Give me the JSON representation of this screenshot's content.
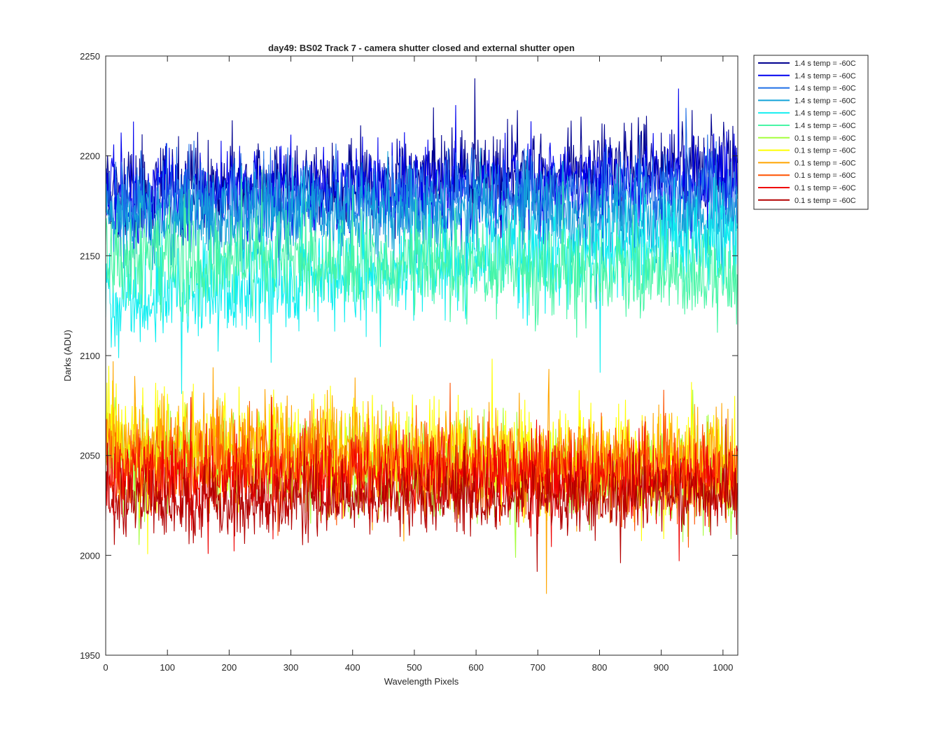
{
  "chart_data": {
    "type": "line",
    "title": "day49: BS02  Track 7 - camera shutter closed and external shutter open",
    "xlabel": "Wavelength Pixels",
    "ylabel": "Darks (ADU)",
    "xlim": [
      0,
      1024
    ],
    "ylim": [
      1950,
      2250
    ],
    "xticks": [
      0,
      100,
      200,
      300,
      400,
      500,
      600,
      700,
      800,
      900,
      1000
    ],
    "yticks": [
      1950,
      2000,
      2050,
      2100,
      2150,
      2200,
      2250
    ],
    "xtick_labels": [
      "0",
      "100",
      "200",
      "300",
      "400",
      "500",
      "600",
      "700",
      "800",
      "900",
      "1000"
    ],
    "ytick_labels": [
      "1950",
      "2000",
      "2050",
      "2100",
      "2150",
      "2200",
      "2250"
    ],
    "grid": false,
    "legend_position": "outside-top-right",
    "x_points": 1024,
    "series": [
      {
        "name": "1.4 s temp = -60C",
        "color": "#00008f",
        "base_start": 2182,
        "base_end": 2196,
        "noise": 24
      },
      {
        "name": "1.4 s temp = -60C",
        "color": "#0000ef",
        "base_start": 2179,
        "base_end": 2190,
        "noise": 24
      },
      {
        "name": "1.4 s temp = -60C",
        "color": "#1f6fe6",
        "base_start": 2176,
        "base_end": 2182,
        "noise": 24
      },
      {
        "name": "1.4 s temp = -60C",
        "color": "#13a3d9",
        "base_start": 2170,
        "base_end": 2168,
        "noise": 24
      },
      {
        "name": "1.4 s temp = -60C",
        "color": "#10eef0",
        "base_start": 2128,
        "base_end": 2160,
        "noise": 26
      },
      {
        "name": "1.4 s temp = -60C",
        "color": "#49f5a6",
        "base_start": 2150,
        "base_end": 2140,
        "noise": 26
      },
      {
        "name": "0.1 s temp = -60C",
        "color": "#a5ff3d",
        "base_start": 2048,
        "base_end": 2040,
        "noise": 26
      },
      {
        "name": "0.1 s temp = -60C",
        "color": "#ffff00",
        "base_start": 2058,
        "base_end": 2044,
        "noise": 28
      },
      {
        "name": "0.1 s temp = -60C",
        "color": "#ffa500",
        "base_start": 2056,
        "base_end": 2044,
        "noise": 28
      },
      {
        "name": "0.1 s temp = -60C",
        "color": "#ff5200",
        "base_start": 2048,
        "base_end": 2042,
        "noise": 24
      },
      {
        "name": "0.1 s temp = -60C",
        "color": "#ef0000",
        "base_start": 2040,
        "base_end": 2038,
        "noise": 22
      },
      {
        "name": "0.1 s temp = -60C",
        "color": "#b30000",
        "base_start": 2026,
        "base_end": 2030,
        "noise": 18
      }
    ]
  }
}
